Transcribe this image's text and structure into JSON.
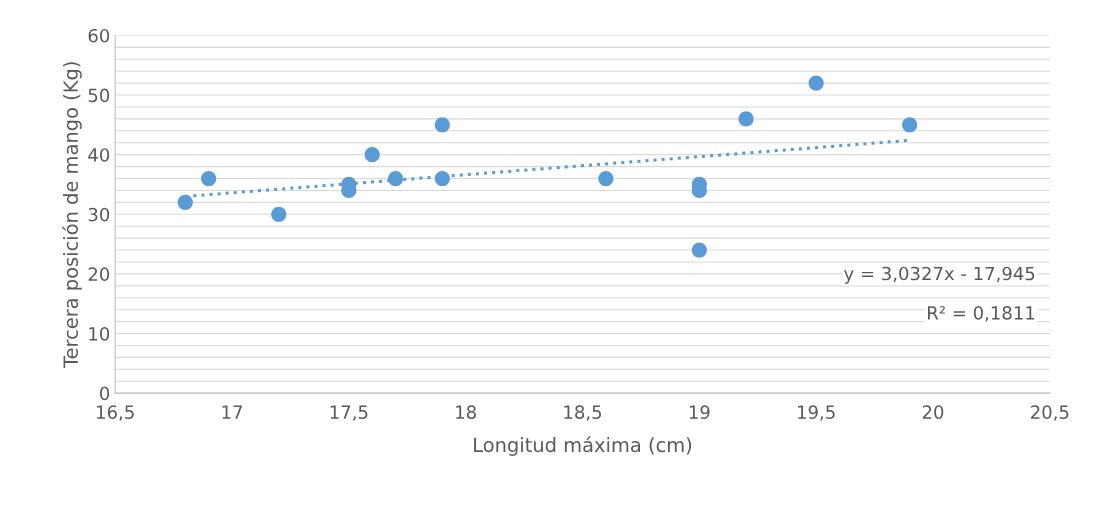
{
  "chart_data": {
    "type": "scatter",
    "xlabel": "Longitud máxima (cm)",
    "ylabel": "Tercera posición de mango (Kg)",
    "xlim": [
      16.5,
      20.5
    ],
    "ylim": [
      0,
      60
    ],
    "xticks": [
      {
        "value": 16.5,
        "label": "16,5"
      },
      17,
      {
        "value": 17.5,
        "label": "17,5"
      },
      18,
      {
        "value": 18.5,
        "label": "18,5"
      },
      19,
      {
        "value": 19.5,
        "label": "19,5"
      },
      20,
      {
        "value": 20.5,
        "label": "20,5"
      }
    ],
    "yticks": [
      0,
      {
        "value": 2,
        "label": null
      },
      {
        "value": 4,
        "label": null
      },
      {
        "value": 6,
        "label": null
      },
      {
        "value": 8,
        "label": null
      },
      10,
      {
        "value": 12,
        "label": null
      },
      {
        "value": 14,
        "label": null
      },
      {
        "value": 16,
        "label": null
      },
      {
        "value": 18,
        "label": null
      },
      20,
      {
        "value": 22,
        "label": null
      },
      {
        "value": 24,
        "label": null
      },
      {
        "value": 26,
        "label": null
      },
      {
        "value": 28,
        "label": null
      },
      30,
      {
        "value": 32,
        "label": null
      },
      {
        "value": 34,
        "label": null
      },
      {
        "value": 36,
        "label": null
      },
      {
        "value": 38,
        "label": null
      },
      40,
      {
        "value": 42,
        "label": null
      },
      {
        "value": 44,
        "label": null
      },
      {
        "value": 46,
        "label": null
      },
      {
        "value": 48,
        "label": null
      },
      50,
      {
        "value": 52,
        "label": null
      },
      {
        "value": 54,
        "label": null
      },
      {
        "value": 56,
        "label": null
      },
      {
        "value": 58,
        "label": null
      },
      60
    ],
    "grid": "y",
    "marker": "circle",
    "legend": false,
    "series": [
      {
        "color": "#5b9bd5",
        "x": [
          16.8,
          16.9,
          17.2,
          17.5,
          17.5,
          17.6,
          17.7,
          17.9,
          17.9,
          18.6,
          19,
          19,
          19,
          19.2,
          19.5,
          19.9
        ],
        "values": [
          32,
          36,
          30,
          35,
          34,
          40,
          36,
          45,
          36,
          36,
          35,
          34,
          24,
          46,
          52,
          45
        ]
      },
      {
        "type": "line",
        "color": "#5b9bd5",
        "line_style": "dotted",
        "marker": "none",
        "x": [
          16.8,
          19.9
        ],
        "values": [
          33.0,
          42.4
        ]
      }
    ],
    "annotations": [
      "y = 3,0327x - 17,945",
      "R² = 0,1811"
    ]
  }
}
